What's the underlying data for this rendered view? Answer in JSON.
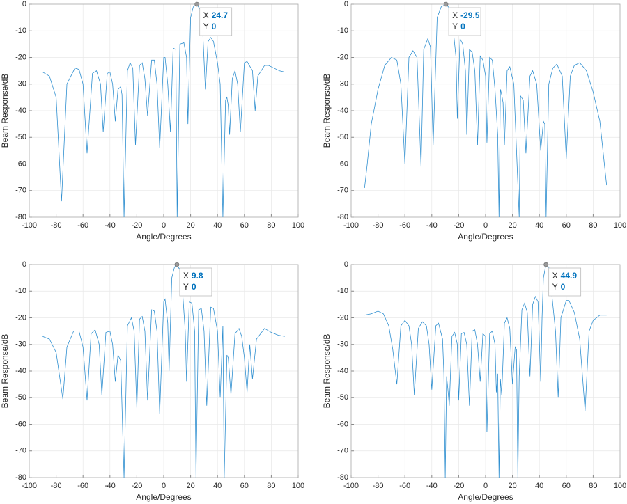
{
  "chart_data": [
    {
      "type": "line",
      "xlabel": "Angle/Degrees",
      "ylabel": "Beam Response/dB",
      "xlim": [
        -100,
        100
      ],
      "xticks": [
        -100,
        -80,
        -60,
        -40,
        -20,
        0,
        20,
        40,
        60,
        80,
        100
      ],
      "ylim": [
        -80,
        0
      ],
      "yticks": [
        -80,
        -70,
        -60,
        -50,
        -40,
        -30,
        -20,
        -10,
        0
      ],
      "grid": true,
      "x": [
        -90,
        -85,
        -80,
        -76,
        -72,
        -66,
        -63,
        -60,
        -57,
        -53,
        -50,
        -47,
        -45,
        -42,
        -40,
        -38,
        -36,
        -34,
        -32,
        -31,
        -29.5,
        -27,
        -25,
        -23,
        -21,
        -18,
        -16,
        -14,
        -12,
        -9,
        -7,
        -5,
        -3,
        0,
        1,
        3,
        5,
        7,
        9,
        10,
        12,
        15,
        17,
        18,
        20,
        22,
        24.7,
        27,
        29,
        31,
        33,
        35,
        37,
        40,
        42,
        44,
        46,
        47,
        48,
        49,
        51,
        53,
        55,
        57,
        60,
        62,
        66,
        68,
        70,
        75,
        78,
        82,
        86,
        90
      ],
      "series": [
        {
          "color": "#2f8fd0",
          "values": [
            -25.5,
            -27,
            -35,
            -74,
            -30,
            -24,
            -24.5,
            -30,
            -56,
            -26,
            -25,
            -30,
            -48,
            -26,
            -25.5,
            -30,
            -44,
            -32,
            -31,
            -34,
            -80,
            -25,
            -22,
            -24,
            -53,
            -23,
            -22,
            -28,
            -42,
            -21,
            -21,
            -30,
            -54,
            -20,
            -20,
            -30,
            -48,
            -16.5,
            -17,
            -80,
            -15,
            -14.5,
            -20,
            -45,
            -5,
            -1,
            0,
            -2,
            -10,
            -32,
            -14,
            -12.5,
            -14,
            -22,
            -30,
            -80,
            -36,
            -35,
            -38,
            -49,
            -28,
            -25,
            -30,
            -48,
            -22,
            -21.5,
            -25,
            -40,
            -27,
            -23,
            -23,
            -24,
            -25,
            -25.5
          ]
        }
      ],
      "datatip": {
        "x_label": "X",
        "x": 24.7,
        "y_label": "Y",
        "y": 0
      }
    },
    {
      "type": "line",
      "xlabel": "Angle/Degrees",
      "ylabel": "Beam Response/dB",
      "xlim": [
        -100,
        100
      ],
      "xticks": [
        -100,
        -80,
        -60,
        -40,
        -20,
        0,
        20,
        40,
        60,
        80,
        100
      ],
      "ylim": [
        -80,
        0
      ],
      "yticks": [
        -80,
        -70,
        -60,
        -50,
        -40,
        -30,
        -20,
        -10,
        0
      ],
      "grid": true,
      "x": [
        -90,
        -88,
        -85,
        -80,
        -75,
        -70,
        -66,
        -63,
        -60,
        -57,
        -54,
        -51,
        -48,
        -46,
        -43,
        -41,
        -39,
        -36,
        -33,
        -29.5,
        -26,
        -24,
        -22,
        -21,
        -19,
        -17,
        -15,
        -14,
        -12,
        -10,
        -8,
        -6,
        -4,
        -2,
        0,
        1,
        3,
        5,
        7,
        9,
        10,
        11,
        12,
        13,
        14,
        16,
        18,
        21,
        23,
        25,
        26,
        28,
        30,
        33,
        35,
        38,
        41,
        43,
        44,
        45,
        47,
        50,
        53,
        57,
        60,
        63,
        66,
        70,
        75,
        80,
        85,
        90
      ],
      "series": [
        {
          "color": "#2f8fd0",
          "values": [
            -69,
            -60,
            -45,
            -32,
            -23,
            -20,
            -21,
            -30,
            -60,
            -20,
            -17.5,
            -20,
            -61,
            -17,
            -13,
            -16,
            -53,
            -5,
            -1,
            0,
            -2,
            -10,
            -20,
            -43,
            -13,
            -15,
            -25,
            -49,
            -17,
            -18,
            -25,
            -53,
            -19.5,
            -21,
            -27,
            -52,
            -20,
            -21,
            -32,
            -49,
            -80,
            -32,
            -34,
            -37,
            -53,
            -25,
            -23.5,
            -30,
            -55,
            -80,
            -34.5,
            -36,
            -56,
            -27,
            -25,
            -30,
            -55,
            -44,
            -45,
            -80,
            -30,
            -24,
            -22.5,
            -27,
            -58,
            -27,
            -23,
            -22,
            -25,
            -33,
            -44,
            -68
          ]
        }
      ],
      "datatip": {
        "x_label": "X",
        "x": -29.5,
        "y_label": "Y",
        "y": 0
      }
    },
    {
      "type": "line",
      "xlabel": "Angle/Degrees",
      "ylabel": "Beam Response/dB",
      "xlim": [
        -100,
        100
      ],
      "xticks": [
        -100,
        -80,
        -60,
        -40,
        -20,
        0,
        20,
        40,
        60,
        80,
        100
      ],
      "ylim": [
        -80,
        0
      ],
      "yticks": [
        -80,
        -70,
        -60,
        -50,
        -40,
        -30,
        -20,
        -10,
        0
      ],
      "grid": true,
      "x": [
        -90,
        -85,
        -80,
        -75,
        -72,
        -67,
        -63,
        -60,
        -57,
        -54,
        -51,
        -48,
        -46,
        -43,
        -40,
        -38,
        -36,
        -34,
        -32,
        -29.5,
        -27,
        -24,
        -22,
        -20,
        -18,
        -16,
        -14,
        -12,
        -9,
        -7,
        -5,
        -3,
        0,
        1,
        3,
        4,
        6,
        8,
        9.8,
        12,
        14,
        16,
        17,
        19,
        21,
        23,
        24,
        26,
        28,
        30,
        32,
        35,
        37,
        40,
        42,
        44,
        45,
        47,
        48,
        50,
        53,
        56,
        58,
        60,
        62,
        64,
        66,
        69,
        75,
        80,
        85,
        90
      ],
      "series": [
        {
          "color": "#2f8fd0",
          "values": [
            -27,
            -28,
            -33,
            -50.5,
            -31,
            -25,
            -25,
            -31,
            -51,
            -26,
            -24.5,
            -30,
            -49,
            -25.5,
            -25,
            -30,
            -44,
            -34,
            -36,
            -80,
            -23,
            -20,
            -25,
            -54,
            -20.5,
            -19.5,
            -25,
            -51,
            -17,
            -17.5,
            -25,
            -56,
            -14,
            -13,
            -22,
            -40,
            -5,
            -1,
            0,
            -2,
            -10,
            -25,
            -44,
            -14,
            -14.5,
            -25,
            -80,
            -17,
            -16.5,
            -25,
            -53,
            -16,
            -16.5,
            -25,
            -50,
            -23,
            -80,
            -34,
            -35,
            -49,
            -26,
            -24,
            -27,
            -35,
            -48,
            -30,
            -43,
            -28,
            -24,
            -25.5,
            -26.5,
            -27
          ]
        }
      ],
      "datatip": {
        "x_label": "X",
        "x": 9.8,
        "y_label": "Y",
        "y": 0
      }
    },
    {
      "type": "line",
      "xlabel": "Angle/Degrees",
      "ylabel": "Beam Response/dB",
      "xlim": [
        -100,
        100
      ],
      "xticks": [
        -100,
        -80,
        -60,
        -40,
        -20,
        0,
        20,
        40,
        60,
        80,
        100
      ],
      "ylim": [
        -80,
        0
      ],
      "yticks": [
        -80,
        -70,
        -60,
        -50,
        -40,
        -30,
        -20,
        -10,
        0
      ],
      "grid": true,
      "x": [
        -90,
        -85,
        -80,
        -76,
        -72,
        -69,
        -66,
        -63,
        -60,
        -57,
        -55,
        -53,
        -50,
        -47,
        -44,
        -42,
        -40,
        -37,
        -35,
        -32,
        -31,
        -30,
        -29,
        -28,
        -27,
        -25,
        -23,
        -21,
        -20,
        -18,
        -16,
        -14,
        -12,
        -10,
        -8,
        -6,
        -4,
        -2,
        0,
        1,
        3,
        5,
        7,
        8,
        9,
        10,
        11,
        12,
        14,
        16,
        18,
        20,
        22,
        23,
        24,
        25,
        27,
        29,
        31,
        33,
        35,
        37,
        39,
        41,
        42,
        43,
        44.9,
        47,
        49,
        52,
        54,
        56,
        60,
        62,
        66,
        70,
        74,
        77,
        80,
        85,
        90
      ],
      "series": [
        {
          "color": "#2f8fd0",
          "values": [
            -19,
            -18.5,
            -17.5,
            -18.5,
            -23,
            -32,
            -45,
            -23,
            -21,
            -23,
            -30,
            -49,
            -24,
            -21.5,
            -23,
            -30,
            -47,
            -23,
            -22,
            -28,
            -41,
            -80,
            -42,
            -47,
            -53,
            -27,
            -25.5,
            -30,
            -51,
            -26,
            -25.5,
            -30,
            -53,
            -25,
            -24.5,
            -30,
            -44,
            -26,
            -27,
            -63,
            -26,
            -25,
            -30,
            -48,
            -41,
            -80,
            -43,
            -49,
            -22,
            -20,
            -24,
            -45,
            -31,
            -32,
            -80,
            -42,
            -17,
            -14.5,
            -18,
            -42,
            -15,
            -12,
            -14,
            -44,
            -20,
            -5,
            0,
            -1,
            -10,
            -25,
            -50,
            -20,
            -13.5,
            -13.5,
            -18,
            -28,
            -55,
            -25,
            -21,
            -19,
            -19
          ]
        }
      ],
      "datatip": {
        "x_label": "X",
        "x": 44.9,
        "y_label": "Y",
        "y": 0
      }
    }
  ]
}
